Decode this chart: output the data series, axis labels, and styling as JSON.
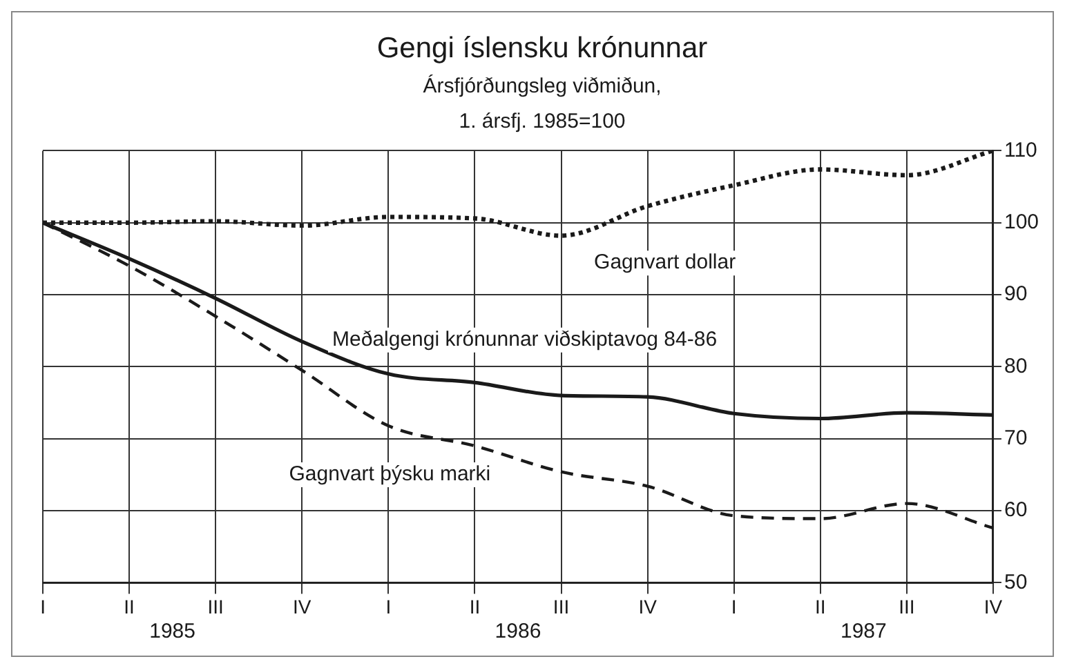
{
  "chart_data": {
    "type": "line",
    "title": "Gengi íslensku krónunnar",
    "subtitle": "Ársfjórðungsleg viðmiðun,\n1. ársfj. 1985=100",
    "categories": [
      "I",
      "II",
      "III",
      "IV",
      "I",
      "II",
      "III",
      "IV",
      "I",
      "II",
      "III",
      "IV"
    ],
    "annotations": [
      "1985",
      "1986",
      "1987"
    ],
    "series": [
      {
        "name": "Gagnvart dollar",
        "color": "#1a1a1a",
        "line_style": "dotted",
        "values": [
          100,
          100,
          100.2,
          99.6,
          100.8,
          100.6,
          98.2,
          102.3,
          105.2,
          107.4,
          106.6,
          110
        ]
      },
      {
        "name": "Meðalgengi krónunnar viðskiptavog 84-86",
        "color": "#1a1a1a",
        "line_style": "solid",
        "values": [
          100,
          95,
          89.5,
          83.5,
          79,
          77.8,
          76,
          75.8,
          73.5,
          72.8,
          73.6,
          73.3
        ]
      },
      {
        "name": "Gagnvart þýsku marki",
        "color": "#1a1a1a",
        "line_style": "dashed",
        "values": [
          100,
          94,
          87,
          79.5,
          71.8,
          69,
          65.4,
          63.4,
          59.3,
          58.9,
          61,
          57.6
        ]
      }
    ],
    "ylim": [
      50,
      110
    ],
    "yticks": [
      50,
      60,
      70,
      80,
      90,
      100,
      110
    ],
    "grid": true,
    "legend": false,
    "marker": "none"
  }
}
